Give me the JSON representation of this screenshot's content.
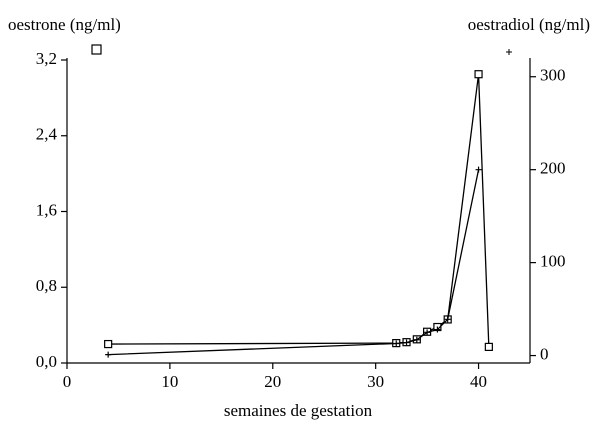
{
  "chart_data": {
    "type": "line",
    "y_label": "oestrone (ng/ml)",
    "y2_label": "oestradiol (ng/ml)",
    "x_label": "semaines de gestation",
    "xlim": [
      0,
      45
    ],
    "xticks": [
      0,
      10,
      20,
      30,
      40
    ],
    "ylim": [
      0,
      3.2
    ],
    "yticks": [
      {
        "value": 0,
        "label": "0,0"
      },
      {
        "value": 0.8,
        "label": "0,8"
      },
      {
        "value": 1.6,
        "label": "1,6"
      },
      {
        "value": 2.4,
        "label": "2,4"
      },
      {
        "value": 3.2,
        "label": "3,2"
      }
    ],
    "y2lim": [
      -8,
      318
    ],
    "y2ticks": [
      0,
      100,
      200,
      300
    ],
    "series": [
      {
        "marker": "square",
        "color": "#000000",
        "x": [
          4,
          32,
          33,
          34,
          35,
          36,
          37,
          40,
          41
        ],
        "values": [
          0.2,
          0.21,
          0.22,
          0.25,
          0.33,
          0.38,
          0.46,
          3.05,
          0.17
        ]
      },
      {
        "marker": "plus",
        "color": "#000000",
        "axis": "y2",
        "x": [
          4,
          32,
          33,
          34,
          35,
          36,
          37,
          40
        ],
        "values": [
          1,
          13,
          14,
          17,
          25,
          28,
          39,
          200
        ]
      }
    ]
  }
}
